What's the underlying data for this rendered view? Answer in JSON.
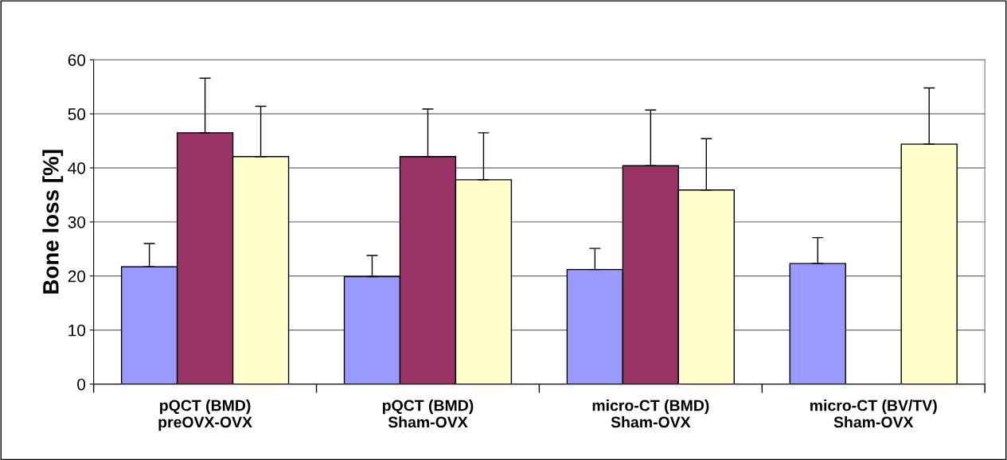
{
  "chart_data": {
    "type": "bar",
    "ylabel": "Bone loss [%]",
    "categories": [
      "pQCT (BMD)\npreOVX-OVX",
      "pQCT (BMD)\nSham-OVX",
      "micro-CT (BMD)\nSham-OVX",
      "micro-CT (BV/TV)\nSham-OVX"
    ],
    "series": [
      {
        "color": "#9999ff",
        "values": [
          21.7,
          19.9,
          21.2,
          22.3
        ],
        "errors": [
          [
            21.7,
            26.0
          ],
          [
            19.9,
            23.8
          ],
          [
            21.2,
            25.1
          ],
          [
            22.3,
            27.1
          ]
        ]
      },
      {
        "color": "#993366",
        "values": [
          46.5,
          42.1,
          40.4,
          null
        ],
        "errors": [
          [
            46.5,
            56.6
          ],
          [
            42.1,
            50.9
          ],
          [
            40.4,
            50.7
          ],
          null
        ]
      },
      {
        "color": "#ffffcc",
        "values": [
          42.1,
          37.8,
          35.9,
          44.4
        ],
        "errors": [
          [
            42.1,
            51.4
          ],
          [
            37.8,
            46.5
          ],
          [
            35.9,
            45.4
          ],
          [
            44.4,
            54.8
          ]
        ]
      }
    ],
    "ylim": [
      0,
      60
    ],
    "yticks": [
      0,
      10,
      20,
      30,
      40,
      50,
      60
    ],
    "grid": "y",
    "legend": false
  }
}
